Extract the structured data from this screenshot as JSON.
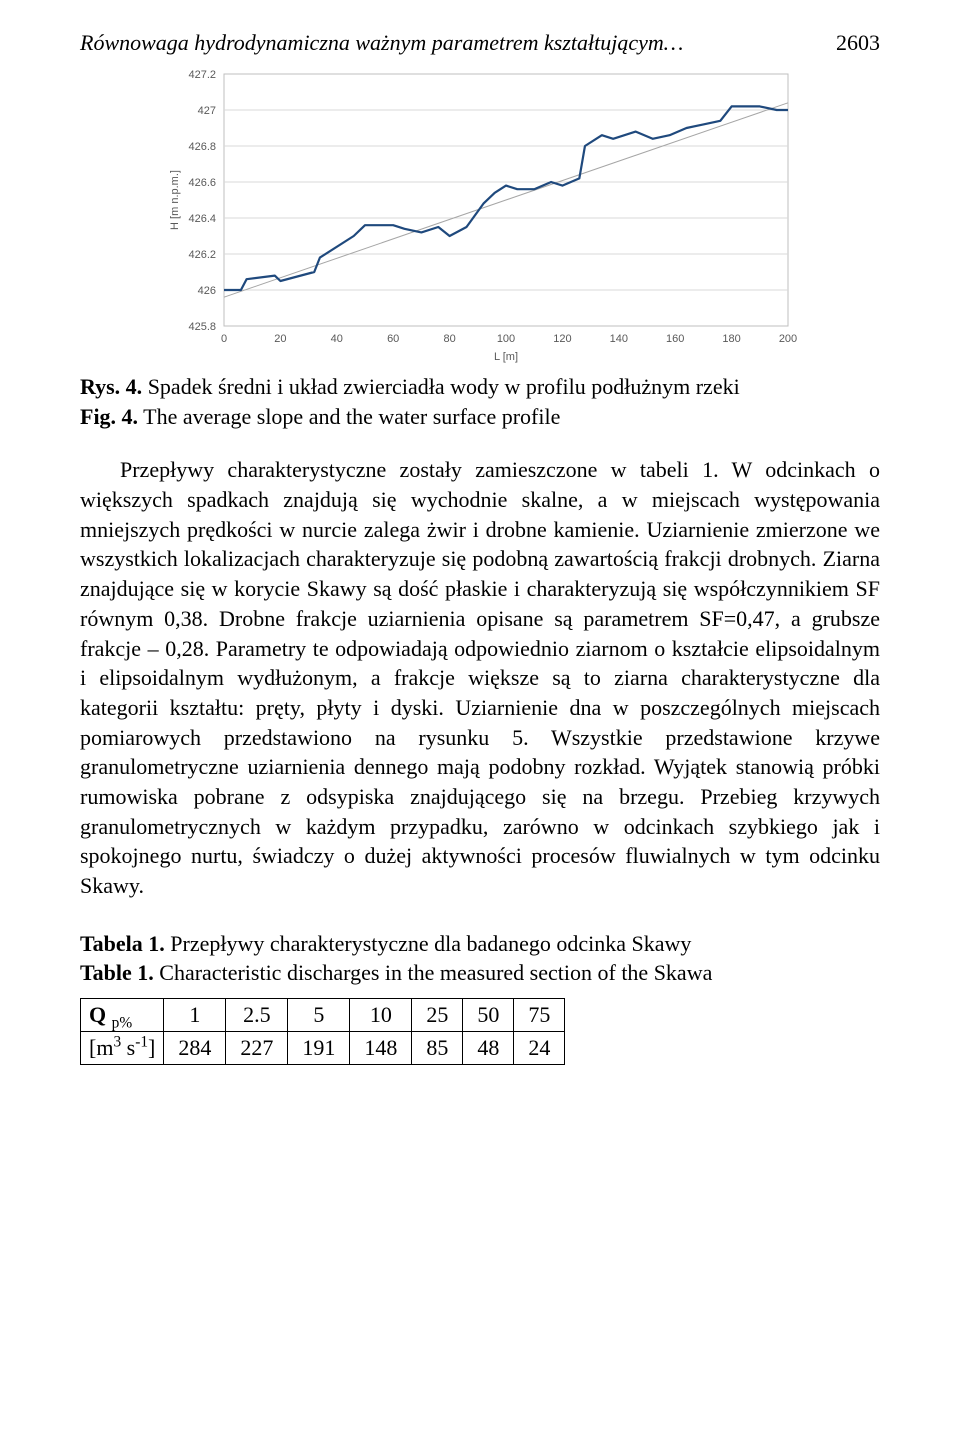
{
  "header": {
    "running_title": "Równowaga hydrodynamiczna ważnym parametrem kształtującym…",
    "page_number": "2603"
  },
  "chart": {
    "type": "line",
    "x_label": "L [m]",
    "y_label": "H [m n.p.m.]",
    "xlim": [
      0,
      200
    ],
    "ylim": [
      425.8,
      427.2
    ],
    "xtick_step": 20,
    "ytick_step": 0.2,
    "y_ticks": [
      "425.8",
      "426",
      "426.2",
      "426.4",
      "426.6",
      "426.8",
      "427",
      "427.2"
    ],
    "x_ticks": [
      "0",
      "20",
      "40",
      "60",
      "80",
      "100",
      "120",
      "140",
      "160",
      "180",
      "200"
    ],
    "plot_bg": "#ffffff",
    "border_color": "#bfbfbf",
    "grid_color": "#d9d9d9",
    "series": {
      "color": "#1f497d",
      "width": 2.2,
      "points": [
        [
          0,
          426.0
        ],
        [
          6,
          426.0
        ],
        [
          8,
          426.06
        ],
        [
          18,
          426.08
        ],
        [
          20,
          426.05
        ],
        [
          32,
          426.1
        ],
        [
          34,
          426.18
        ],
        [
          46,
          426.3
        ],
        [
          50,
          426.36
        ],
        [
          52,
          426.36
        ],
        [
          60,
          426.36
        ],
        [
          64,
          426.34
        ],
        [
          70,
          426.32
        ],
        [
          76,
          426.35
        ],
        [
          80,
          426.3
        ],
        [
          86,
          426.35
        ],
        [
          92,
          426.48
        ],
        [
          96,
          426.54
        ],
        [
          100,
          426.58
        ],
        [
          104,
          426.56
        ],
        [
          110,
          426.56
        ],
        [
          116,
          426.6
        ],
        [
          120,
          426.58
        ],
        [
          126,
          426.62
        ],
        [
          128,
          426.8
        ],
        [
          134,
          426.86
        ],
        [
          138,
          426.84
        ],
        [
          146,
          426.88
        ],
        [
          152,
          426.84
        ],
        [
          158,
          426.86
        ],
        [
          164,
          426.9
        ],
        [
          170,
          426.92
        ],
        [
          176,
          426.94
        ],
        [
          180,
          427.02
        ],
        [
          190,
          427.02
        ],
        [
          196,
          427.0
        ],
        [
          200,
          427.0
        ]
      ]
    },
    "trend": {
      "color": "#a6a6a6",
      "width": 1,
      "p1": [
        0,
        425.96
      ],
      "p2": [
        200,
        427.04
      ]
    }
  },
  "fig_caption": {
    "label_pl": "Rys. 4.",
    "text_pl": "Spadek średni i układ zwierciadła wody w profilu podłużnym rzeki",
    "label_en": "Fig. 4.",
    "text_en": "The average slope and the water surface profile"
  },
  "paragraph": "Przepływy charakterystyczne zostały zamieszczone w tabeli 1. W odcinkach o większych spadkach znajdują się wychodnie skalne, a w miejscach występowania mniejszych prędkości w nurcie zalega żwir i drobne kamienie. Uziarnienie zmierzone we wszystkich lokalizacjach charakteryzuje się podobną zawartością frakcji drobnych. Ziarna znajdujące się w korycie Skawy są dość płaskie i charakteryzują się współczynnikiem SF równym 0,38. Drobne frakcje uziarnienia opisane są parametrem SF=0,47, a grubsze frakcje – 0,28. Parametry te odpowiadają odpowiednio ziarnom o kształcie elipsoidalnym i elipsoidalnym wydłużonym, a frakcje większe są to ziarna charakterystyczne dla kategorii kształtu: pręty, płyty i dyski. Uziarnienie dna w poszczególnych miejscach pomiarowych przedstawiono na rysunku 5. Wszystkie przedstawione krzywe granulometryczne uziarnienia dennego mają podobny rozkład. Wyjątek stanowią próbki rumowiska pobrane z odsypiska znajdującego się na brzegu. Przebieg krzywych granulometrycznych w każdym przypadku, zarówno w odcinkach szybkiego jak i spokojnego nurtu, świadczy o dużej aktywności procesów fluwialnych w tym odcinku Skawy.",
  "table_caption": {
    "label_pl": "Tabela 1.",
    "text_pl": "Przepływy charakterystyczne dla badanego odcinka Skawy",
    "label_en": "Table 1.",
    "text_en": "Characteristic discharges in the measured section of the Skawa"
  },
  "table": {
    "row1_label_html": "Q <sub>p%</sub>",
    "row2_label_html": "[m<sup>3</sup> s<sup>-1</sup>]",
    "cols": [
      "1",
      "2.5",
      "5",
      "10",
      "25",
      "50",
      "75"
    ],
    "vals": [
      "284",
      "227",
      "191",
      "148",
      "85",
      "48",
      "24"
    ]
  }
}
